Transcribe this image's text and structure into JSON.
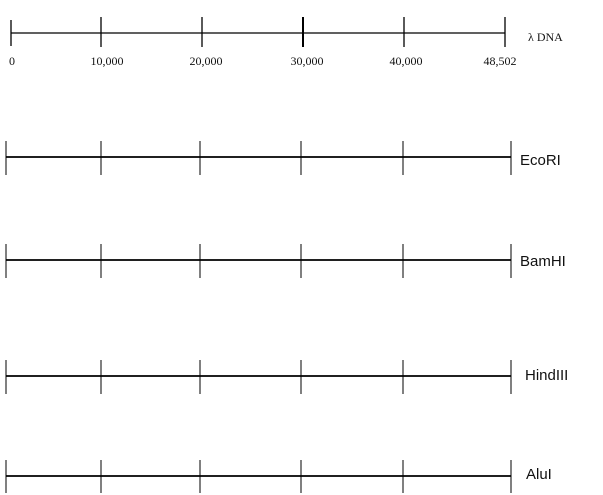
{
  "scale": {
    "label": "λ DNA",
    "ticks": [
      "0",
      "10,000",
      "20,000",
      "30,000",
      "40,000",
      "48,502"
    ],
    "positions": [
      0,
      10000,
      20000,
      30000,
      40000,
      48502
    ]
  },
  "maps": [
    {
      "label": "EcoRI"
    },
    {
      "label": "BamHI"
    },
    {
      "label": "HindIII"
    },
    {
      "label": "AluI"
    }
  ],
  "colors": {
    "line": "#000000",
    "text": "#111111"
  }
}
